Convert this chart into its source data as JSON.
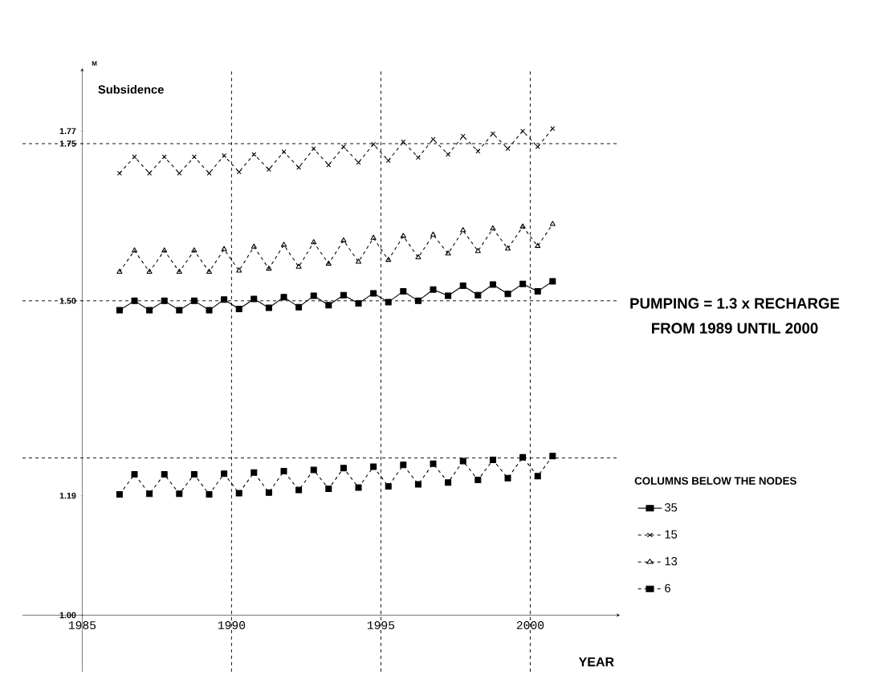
{
  "chart_data": {
    "type": "line",
    "ylabel": "Subsidence",
    "xlabel": "YEAR",
    "legend_title": "COLUMNS BELOW THE NODES",
    "annotations": [
      "PUMPING = 1.3 x RECHARGE",
      "FROM 1989 UNTIL 2000",
      "M"
    ],
    "x": [
      1986.25,
      1986.75,
      1987.25,
      1987.75,
      1988.25,
      1988.75,
      1989.25,
      1989.75,
      1990.25,
      1990.75,
      1991.25,
      1991.75,
      1992.25,
      1992.75,
      1993.25,
      1993.75,
      1994.25,
      1994.75,
      1995.25,
      1995.75,
      1996.25,
      1996.75,
      1997.25,
      1997.75,
      1998.25,
      1998.75,
      1999.25,
      1999.75,
      2000.25,
      2000.75
    ],
    "series": [
      {
        "name": "35",
        "color": "#000000",
        "marker": "square",
        "line_style": "solid",
        "values": [
          1.485,
          1.5,
          1.485,
          1.5,
          1.485,
          1.5,
          1.485,
          1.502,
          1.487,
          1.503,
          1.489,
          1.506,
          1.49,
          1.508,
          1.493,
          1.509,
          1.496,
          1.512,
          1.498,
          1.515,
          1.5,
          1.518,
          1.508,
          1.524,
          1.509,
          1.526,
          1.511,
          1.527,
          1.515,
          1.531
        ]
      },
      {
        "name": "15",
        "color": "#000000",
        "marker": "cross",
        "line_style": "dashed",
        "values": [
          1.703,
          1.729,
          1.703,
          1.729,
          1.703,
          1.729,
          1.703,
          1.731,
          1.705,
          1.733,
          1.709,
          1.737,
          1.712,
          1.742,
          1.716,
          1.745,
          1.72,
          1.749,
          1.723,
          1.753,
          1.728,
          1.757,
          1.733,
          1.762,
          1.738,
          1.766,
          1.742,
          1.77,
          1.745,
          1.774
        ]
      },
      {
        "name": "13",
        "color": "#000000",
        "marker": "triangle",
        "line_style": "dashed",
        "values": [
          1.546,
          1.58,
          1.546,
          1.58,
          1.546,
          1.58,
          1.546,
          1.582,
          1.548,
          1.586,
          1.551,
          1.589,
          1.554,
          1.593,
          1.559,
          1.596,
          1.562,
          1.6,
          1.565,
          1.603,
          1.569,
          1.605,
          1.575,
          1.612,
          1.579,
          1.615,
          1.583,
          1.618,
          1.587,
          1.622
        ]
      },
      {
        "name": "6",
        "color": "#000000",
        "marker": "square",
        "line_style": "dashed",
        "values": [
          1.192,
          1.224,
          1.193,
          1.224,
          1.193,
          1.224,
          1.192,
          1.225,
          1.194,
          1.227,
          1.195,
          1.229,
          1.199,
          1.231,
          1.201,
          1.234,
          1.203,
          1.236,
          1.205,
          1.239,
          1.208,
          1.241,
          1.211,
          1.245,
          1.215,
          1.247,
          1.218,
          1.251,
          1.221,
          1.253
        ]
      }
    ],
    "xlim": [
      1983,
      2003
    ],
    "ylim": [
      0.91,
      1.87
    ],
    "xticks": [
      1985,
      1990,
      1995,
      2000
    ],
    "yticks": [
      {
        "value": 1.0,
        "label": "1.00"
      },
      1.19,
      {
        "value": 1.5,
        "label": "1.50"
      },
      1.75,
      1.77
    ],
    "ref_lines": [
      {
        "axis": "y",
        "value": 1.25
      },
      {
        "axis": "y",
        "value": 1.5
      },
      {
        "axis": "y",
        "value": 1.75
      },
      {
        "axis": "x",
        "value": 1990
      },
      {
        "axis": "x",
        "value": 1995
      },
      {
        "axis": "x",
        "value": 2000
      }
    ],
    "legend": "right"
  }
}
